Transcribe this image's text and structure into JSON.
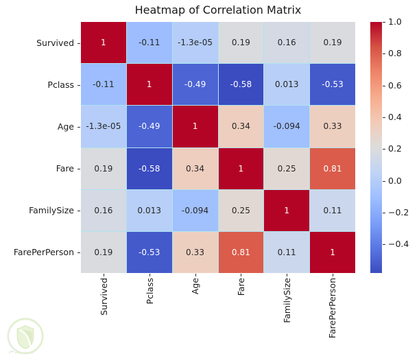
{
  "figure": {
    "title": "Heatmap of Correlation Matrix"
  },
  "chart_data": {
    "type": "heatmap",
    "title": "Heatmap of Correlation Matrix",
    "categories": [
      "Survived",
      "Pclass",
      "Age",
      "Fare",
      "FamilySize",
      "FarePerPerson"
    ],
    "values": [
      [
        1,
        -0.11,
        -1.3e-05,
        0.19,
        0.16,
        0.19
      ],
      [
        -0.11,
        1,
        -0.49,
        -0.58,
        0.013,
        -0.53
      ],
      [
        -1.3e-05,
        -0.49,
        1,
        0.34,
        -0.094,
        0.33
      ],
      [
        0.19,
        -0.58,
        0.34,
        1,
        0.25,
        0.81
      ],
      [
        0.16,
        0.013,
        -0.094,
        0.25,
        1,
        0.11
      ],
      [
        0.19,
        -0.53,
        0.33,
        0.81,
        0.11,
        1
      ]
    ],
    "cell_labels": [
      [
        "1",
        "-0.11",
        "-1.3e-05",
        "0.19",
        "0.16",
        "0.19"
      ],
      [
        "-0.11",
        "1",
        "-0.49",
        "-0.58",
        "0.013",
        "-0.53"
      ],
      [
        "-1.3e-05",
        "-0.49",
        "1",
        "0.34",
        "-0.094",
        "0.33"
      ],
      [
        "0.19",
        "-0.58",
        "0.34",
        "1",
        "0.25",
        "0.81"
      ],
      [
        "0.16",
        "0.013",
        "-0.094",
        "0.25",
        "1",
        "0.11"
      ],
      [
        "0.19",
        "-0.53",
        "0.33",
        "0.81",
        "0.11",
        "1"
      ]
    ],
    "colormap": "coolwarm",
    "vmin": -0.58,
    "vmax": 1.0,
    "colormap_stops": [
      "#3b4cc0",
      "#5977e3",
      "#7b9ff9",
      "#9ebeff",
      "#c0d4f5",
      "#dddcdc",
      "#f2cbb7",
      "#f7ac8e",
      "#ee8468",
      "#d65244",
      "#b40426"
    ],
    "grid_line_color": "#aee4f0",
    "legend_position": "right",
    "colorbar": {
      "ticks": [
        1.0,
        0.8,
        0.6,
        0.4,
        0.2,
        0.0,
        -0.2,
        -0.4
      ],
      "tick_labels": [
        "1.0",
        "0.8",
        "0.6",
        "0.4",
        "0.2",
        "0.0",
        "−0.2",
        "−0.4"
      ]
    },
    "annotation_text_dark": "#262626",
    "annotation_text_light": "#ffffff"
  },
  "watermark": {
    "ring_color": "#c3dd98",
    "shield_color": "#cfe5a9",
    "accent_color": "#b5d47e"
  }
}
